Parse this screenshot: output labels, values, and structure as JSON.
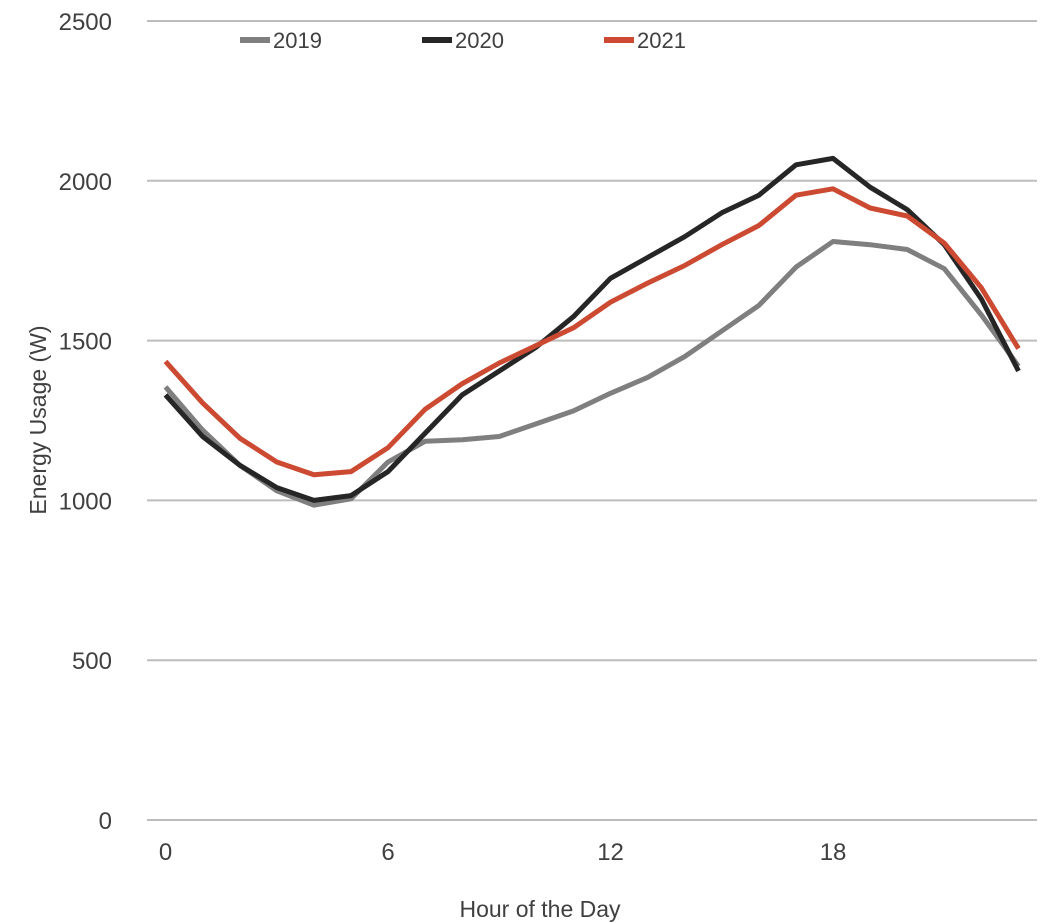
{
  "chart_data": {
    "type": "line",
    "title": "",
    "xlabel": "Hour of the Day",
    "ylabel": "Energy Usage (W)",
    "x": [
      0,
      1,
      2,
      3,
      4,
      5,
      6,
      7,
      8,
      9,
      10,
      11,
      12,
      13,
      14,
      15,
      16,
      17,
      18,
      19,
      20,
      21,
      22,
      23
    ],
    "xlim": [
      -0.5,
      23.5
    ],
    "x_ticks": [
      0,
      6,
      12,
      18
    ],
    "x_tick_labels": [
      "0",
      "6",
      "12",
      "18"
    ],
    "ylim": [
      0,
      2500
    ],
    "y_ticks": [
      0,
      500,
      1000,
      1500,
      2000,
      2500
    ],
    "y_tick_labels": [
      "0",
      "500",
      "1000",
      "1500",
      "2000",
      "2500"
    ],
    "grid": "horizontal",
    "legend_position": "top",
    "series": [
      {
        "name": "2019",
        "color": "#7f7f7f",
        "values": [
          1355,
          1220,
          1110,
          1030,
          985,
          1005,
          1120,
          1185,
          1190,
          1200,
          1240,
          1280,
          1335,
          1385,
          1450,
          1530,
          1610,
          1730,
          1810,
          1800,
          1785,
          1725,
          1580,
          1420
        ]
      },
      {
        "name": "2020",
        "color": "#262626",
        "values": [
          1330,
          1200,
          1110,
          1040,
          1000,
          1015,
          1090,
          1210,
          1330,
          1405,
          1480,
          1575,
          1695,
          1760,
          1825,
          1900,
          1955,
          2050,
          2070,
          1980,
          1910,
          1800,
          1630,
          1405
        ]
      },
      {
        "name": "2021",
        "color": "#cc4a32",
        "values": [
          1435,
          1305,
          1195,
          1120,
          1080,
          1090,
          1165,
          1285,
          1365,
          1430,
          1485,
          1540,
          1620,
          1680,
          1735,
          1800,
          1860,
          1955,
          1975,
          1915,
          1890,
          1805,
          1665,
          1475
        ]
      }
    ]
  }
}
